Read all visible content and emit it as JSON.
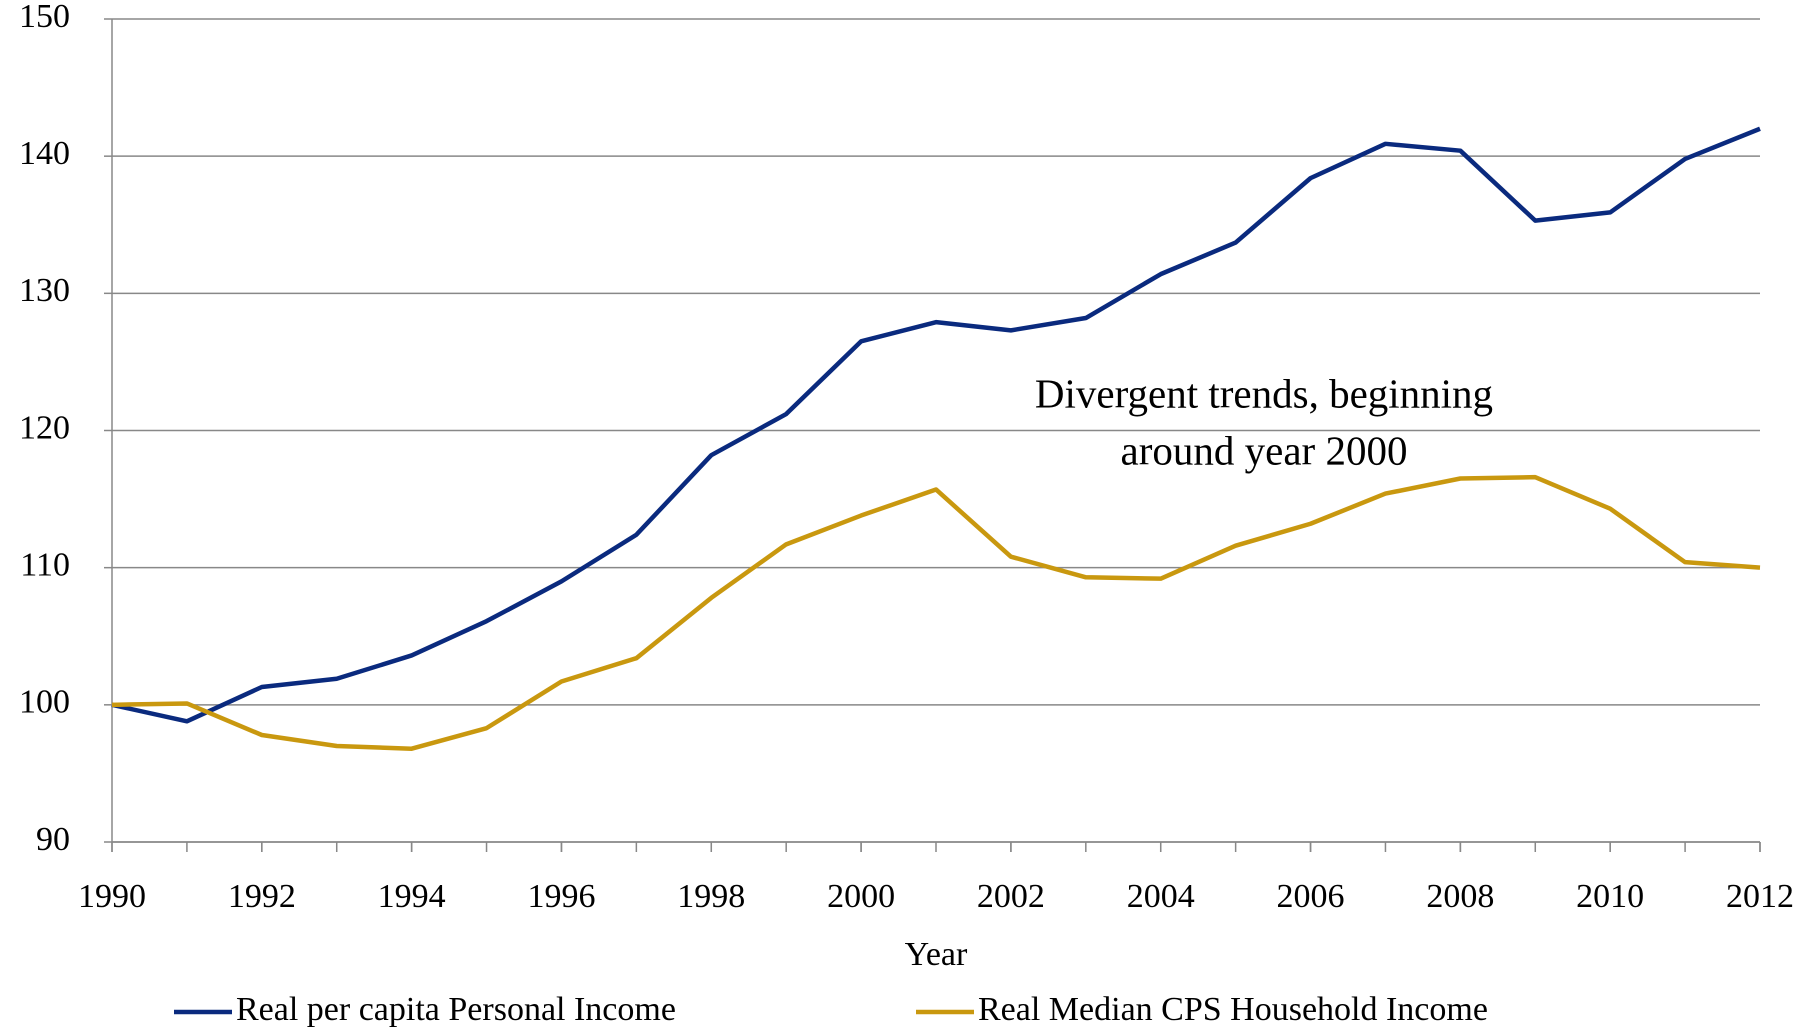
{
  "chart_data": {
    "type": "line",
    "x": [
      1990,
      1991,
      1992,
      1993,
      1994,
      1995,
      1996,
      1997,
      1998,
      1999,
      2000,
      2001,
      2002,
      2003,
      2004,
      2005,
      2006,
      2007,
      2008,
      2009,
      2010,
      2011,
      2012
    ],
    "series": [
      {
        "name": "Real per capita Personal Income",
        "color": "#0a2a7e",
        "values": [
          100,
          98.8,
          101.3,
          101.9,
          103.6,
          106.1,
          109,
          112.4,
          118.2,
          121.2,
          126.5,
          127.9,
          127.3,
          128.2,
          131.4,
          133.7,
          138.4,
          140.9,
          140.4,
          135.3,
          135.9,
          139.8,
          142
        ]
      },
      {
        "name": "Real Median CPS Household Income",
        "color": "#c9980f",
        "values": [
          100,
          100.1,
          97.8,
          97.0,
          96.8,
          98.3,
          101.7,
          103.4,
          107.8,
          111.7,
          113.8,
          115.7,
          110.8,
          109.3,
          109.2,
          111.6,
          113.2,
          115.4,
          116.5,
          116.6,
          114.3,
          110.4,
          110.0
        ]
      }
    ],
    "xlabel": "Year",
    "annotation": [
      "Divergent trends, beginning",
      "around year 2000"
    ],
    "annotation_color": "#ee1111",
    "xlim": [
      1990,
      2012
    ],
    "xticks": [
      1990,
      1992,
      1994,
      1996,
      1998,
      2000,
      2002,
      2004,
      2006,
      2008,
      2010,
      2012
    ],
    "ylim": [
      90,
      150
    ],
    "yticks": [
      90,
      100,
      110,
      120,
      130,
      140,
      150
    ],
    "grid": true,
    "legend": "bottom"
  }
}
